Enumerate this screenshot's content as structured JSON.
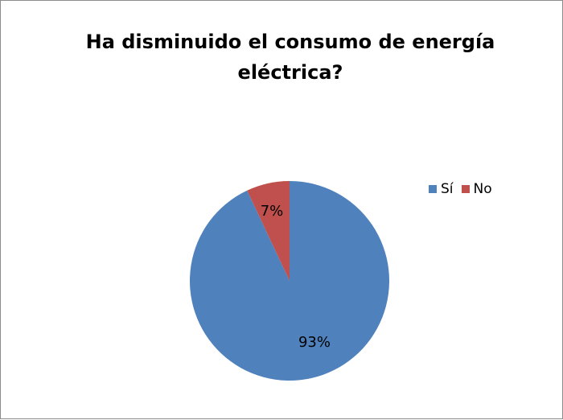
{
  "chart_data": {
    "type": "pie",
    "title": "Ha disminuido el consumo de energía eléctrica?",
    "categories": [
      "Sí",
      "No"
    ],
    "values": [
      93,
      7
    ],
    "data_labels": [
      "93%",
      "7%"
    ],
    "colors": [
      "#4f81bd",
      "#c0504d"
    ],
    "legend_position": "right"
  }
}
